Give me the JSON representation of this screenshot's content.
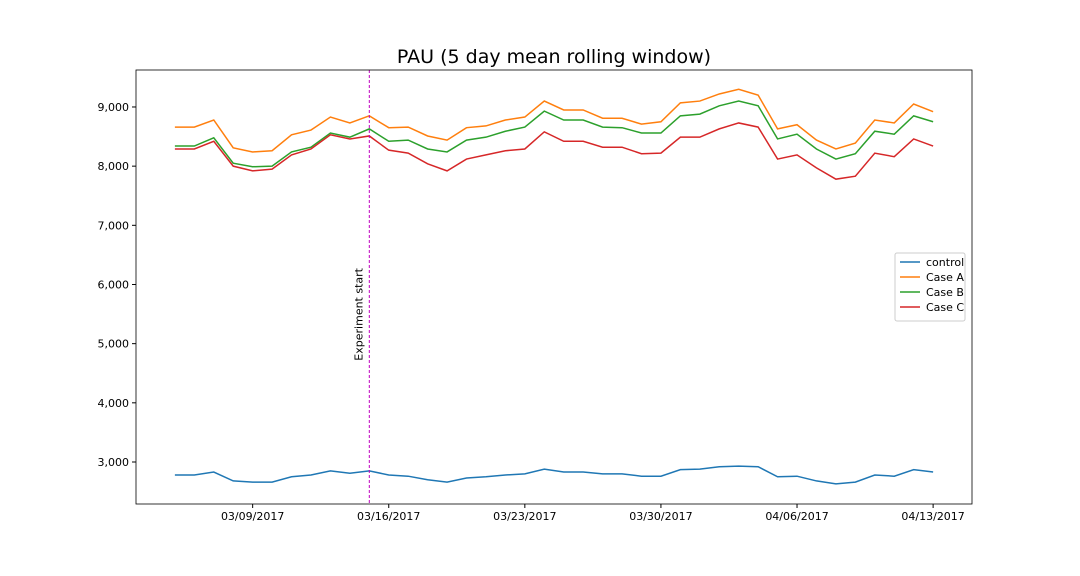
{
  "chart_data": {
    "type": "line",
    "title": "PAU (5 day mean rolling window)",
    "x": [
      "2017-03-05",
      "2017-03-06",
      "2017-03-07",
      "2017-03-08",
      "2017-03-09",
      "2017-03-10",
      "2017-03-11",
      "2017-03-12",
      "2017-03-13",
      "2017-03-14",
      "2017-03-15",
      "2017-03-16",
      "2017-03-17",
      "2017-03-18",
      "2017-03-19",
      "2017-03-20",
      "2017-03-21",
      "2017-03-22",
      "2017-03-23",
      "2017-03-24",
      "2017-03-25",
      "2017-03-26",
      "2017-03-27",
      "2017-03-28",
      "2017-03-29",
      "2017-03-30",
      "2017-03-31",
      "2017-04-01",
      "2017-04-02",
      "2017-04-03",
      "2017-04-04",
      "2017-04-05",
      "2017-04-06",
      "2017-04-07",
      "2017-04-08",
      "2017-04-09",
      "2017-04-10",
      "2017-04-11",
      "2017-04-12",
      "2017-04-13"
    ],
    "series": [
      {
        "name": "control",
        "color": "#1f77b4",
        "values": [
          2780,
          2780,
          2830,
          2680,
          2660,
          2660,
          2750,
          2780,
          2850,
          2810,
          2850,
          2780,
          2760,
          2700,
          2660,
          2730,
          2750,
          2780,
          2800,
          2880,
          2830,
          2830,
          2800,
          2800,
          2760,
          2760,
          2870,
          2880,
          2920,
          2930,
          2920,
          2750,
          2760,
          2680,
          2630,
          2660,
          2780,
          2760,
          2870,
          2830
        ]
      },
      {
        "name": "Case A",
        "color": "#ff7f0e",
        "values": [
          8660,
          8660,
          8780,
          8310,
          8240,
          8260,
          8530,
          8610,
          8830,
          8730,
          8850,
          8650,
          8660,
          8510,
          8440,
          8650,
          8680,
          8780,
          8830,
          9100,
          8950,
          8950,
          8810,
          8810,
          8710,
          8750,
          9070,
          9100,
          9220,
          9300,
          9200,
          8630,
          8700,
          8440,
          8290,
          8390,
          8780,
          8730,
          9050,
          8920
        ]
      },
      {
        "name": "Case B",
        "color": "#2ca02c",
        "values": [
          8340,
          8340,
          8480,
          8050,
          7990,
          8000,
          8240,
          8320,
          8560,
          8490,
          8630,
          8420,
          8440,
          8290,
          8240,
          8440,
          8490,
          8590,
          8660,
          8930,
          8780,
          8780,
          8660,
          8650,
          8560,
          8560,
          8850,
          8880,
          9020,
          9100,
          9020,
          8460,
          8540,
          8290,
          8120,
          8210,
          8590,
          8540,
          8850,
          8750
        ]
      },
      {
        "name": "Case C",
        "color": "#d62728",
        "values": [
          8290,
          8290,
          8420,
          8000,
          7920,
          7950,
          8190,
          8290,
          8530,
          8460,
          8510,
          8270,
          8220,
          8040,
          7920,
          8120,
          8190,
          8260,
          8290,
          8580,
          8420,
          8420,
          8320,
          8320,
          8210,
          8220,
          8490,
          8490,
          8630,
          8730,
          8660,
          8120,
          8190,
          7970,
          7780,
          7830,
          8220,
          8160,
          8460,
          8340
        ]
      }
    ],
    "xlim": [
      "2017-03-03",
      "2017-04-15"
    ],
    "xticks": [
      {
        "value": "2017-03-09",
        "label": "03/09/2017"
      },
      {
        "value": "2017-03-16",
        "label": "03/16/2017"
      },
      {
        "value": "2017-03-23",
        "label": "03/23/2017"
      },
      {
        "value": "2017-03-30",
        "label": "03/30/2017"
      },
      {
        "value": "2017-04-06",
        "label": "04/06/2017"
      },
      {
        "value": "2017-04-13",
        "label": "04/13/2017"
      }
    ],
    "ylim": [
      2290,
      9625
    ],
    "yticks": [
      {
        "value": 3000,
        "label": "3,000"
      },
      {
        "value": 4000,
        "label": "4,000"
      },
      {
        "value": 5000,
        "label": "5,000"
      },
      {
        "value": 6000,
        "label": "6,000"
      },
      {
        "value": 7000,
        "label": "7,000"
      },
      {
        "value": 8000,
        "label": "8,000"
      },
      {
        "value": 9000,
        "label": "9,000"
      }
    ],
    "annotation": {
      "x": "2017-03-15",
      "text": "Experiment start",
      "color": "#bf00bf"
    },
    "legend": "center right"
  }
}
